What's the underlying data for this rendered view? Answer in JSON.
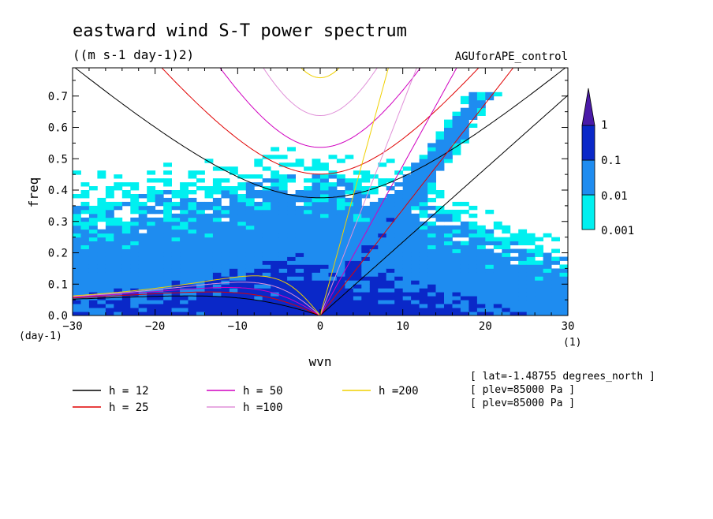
{
  "chart_data": {
    "type": "contour",
    "title": "eastward wind S-T power spectrum",
    "units": "((m s-1 day-1)2)",
    "run_label": "AGUforAPE_control",
    "xlabel": "wvn",
    "ylabel": "freq",
    "x_unit": "(1)",
    "y_unit": "(day-1)",
    "xlim": [
      -30,
      30
    ],
    "ylim": [
      0,
      0.79
    ],
    "x_ticks": [
      -30,
      -20,
      -10,
      0,
      10,
      20,
      30
    ],
    "y_ticks": [
      0.0,
      0.1,
      0.2,
      0.3,
      0.4,
      0.5,
      0.6,
      0.7
    ],
    "colorbar": {
      "levels": [
        "0.001",
        "0.01",
        "0.1",
        "1"
      ],
      "colors": [
        "#00f0f0",
        "#1e8cf0",
        "#0a28c8",
        "#4a1aa8"
      ]
    },
    "dispersion_curves": [
      {
        "h": 12,
        "label": "h = 12",
        "color": "#000000"
      },
      {
        "h": 25,
        "label": "h = 25",
        "color": "#e00000"
      },
      {
        "h": 50,
        "label": "h = 50",
        "color": "#d000c0"
      },
      {
        "h": 100,
        "label": "h =100",
        "color": "#e090d8"
      },
      {
        "h": 200,
        "label": "h =200",
        "color": "#f0d000"
      }
    ],
    "info_lines": [
      "[ lat=-1.48755 degrees_north ]",
      "[ plev=85000 Pa ]",
      "[ plev=85000 Pa ]"
    ]
  }
}
